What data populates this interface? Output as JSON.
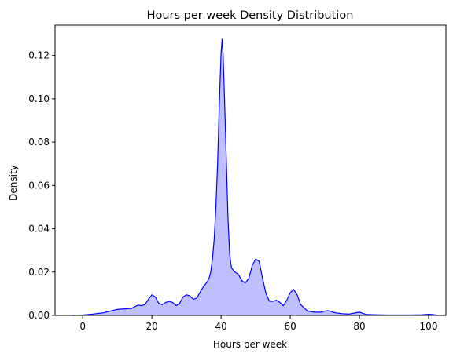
{
  "chart_data": {
    "type": "area",
    "title": "Hours per week Density Distribution",
    "xlabel": "Hours per week",
    "ylabel": "Density",
    "xlim": [
      -8,
      105
    ],
    "ylim": [
      0,
      0.134
    ],
    "xticks": [
      0,
      20,
      40,
      60,
      80,
      100
    ],
    "yticks": [
      0.0,
      0.02,
      0.04,
      0.06,
      0.08,
      0.1,
      0.12
    ],
    "ytick_labels": [
      "0.00",
      "0.02",
      "0.04",
      "0.06",
      "0.08",
      "0.10",
      "0.12"
    ],
    "grid": false,
    "line_color": "#0000ff",
    "fill_color": "#bfbfff",
    "series": [
      {
        "x": [
          -3,
          0,
          3,
          6,
          8,
          10,
          12,
          14,
          15,
          16,
          17,
          18,
          19,
          20,
          21,
          22,
          23,
          24,
          25,
          26,
          27,
          28,
          29,
          30,
          31,
          32,
          33,
          34,
          35,
          36,
          36.5,
          37,
          37.5,
          38,
          38.5,
          39,
          39.5,
          40,
          40.3,
          40.6,
          41,
          41.5,
          42,
          42.5,
          43,
          44,
          45,
          46,
          47,
          48,
          49,
          50,
          51,
          52,
          53,
          54,
          55,
          56,
          57,
          58,
          59,
          60,
          61,
          62,
          63,
          65,
          67,
          69,
          70,
          71,
          73,
          75,
          77,
          80,
          82,
          85,
          88,
          90,
          95,
          98,
          100,
          101,
          103
        ],
        "y": [
          0.0,
          0.0002,
          0.0006,
          0.0012,
          0.002,
          0.0028,
          0.003,
          0.0032,
          0.004,
          0.0048,
          0.0045,
          0.005,
          0.0075,
          0.0095,
          0.0085,
          0.0055,
          0.005,
          0.006,
          0.0065,
          0.006,
          0.0045,
          0.0055,
          0.0085,
          0.0095,
          0.009,
          0.0075,
          0.008,
          0.011,
          0.0135,
          0.0155,
          0.017,
          0.02,
          0.026,
          0.035,
          0.05,
          0.07,
          0.098,
          0.121,
          0.1275,
          0.12,
          0.1,
          0.073,
          0.045,
          0.028,
          0.022,
          0.02,
          0.019,
          0.016,
          0.015,
          0.017,
          0.023,
          0.026,
          0.025,
          0.017,
          0.01,
          0.0065,
          0.0065,
          0.007,
          0.006,
          0.0045,
          0.007,
          0.0105,
          0.012,
          0.0095,
          0.005,
          0.002,
          0.0015,
          0.0015,
          0.002,
          0.0022,
          0.0012,
          0.0008,
          0.0006,
          0.0015,
          0.0004,
          0.0003,
          0.0002,
          0.0002,
          0.0002,
          0.0003,
          0.0005,
          0.0004,
          0.0
        ]
      }
    ]
  }
}
